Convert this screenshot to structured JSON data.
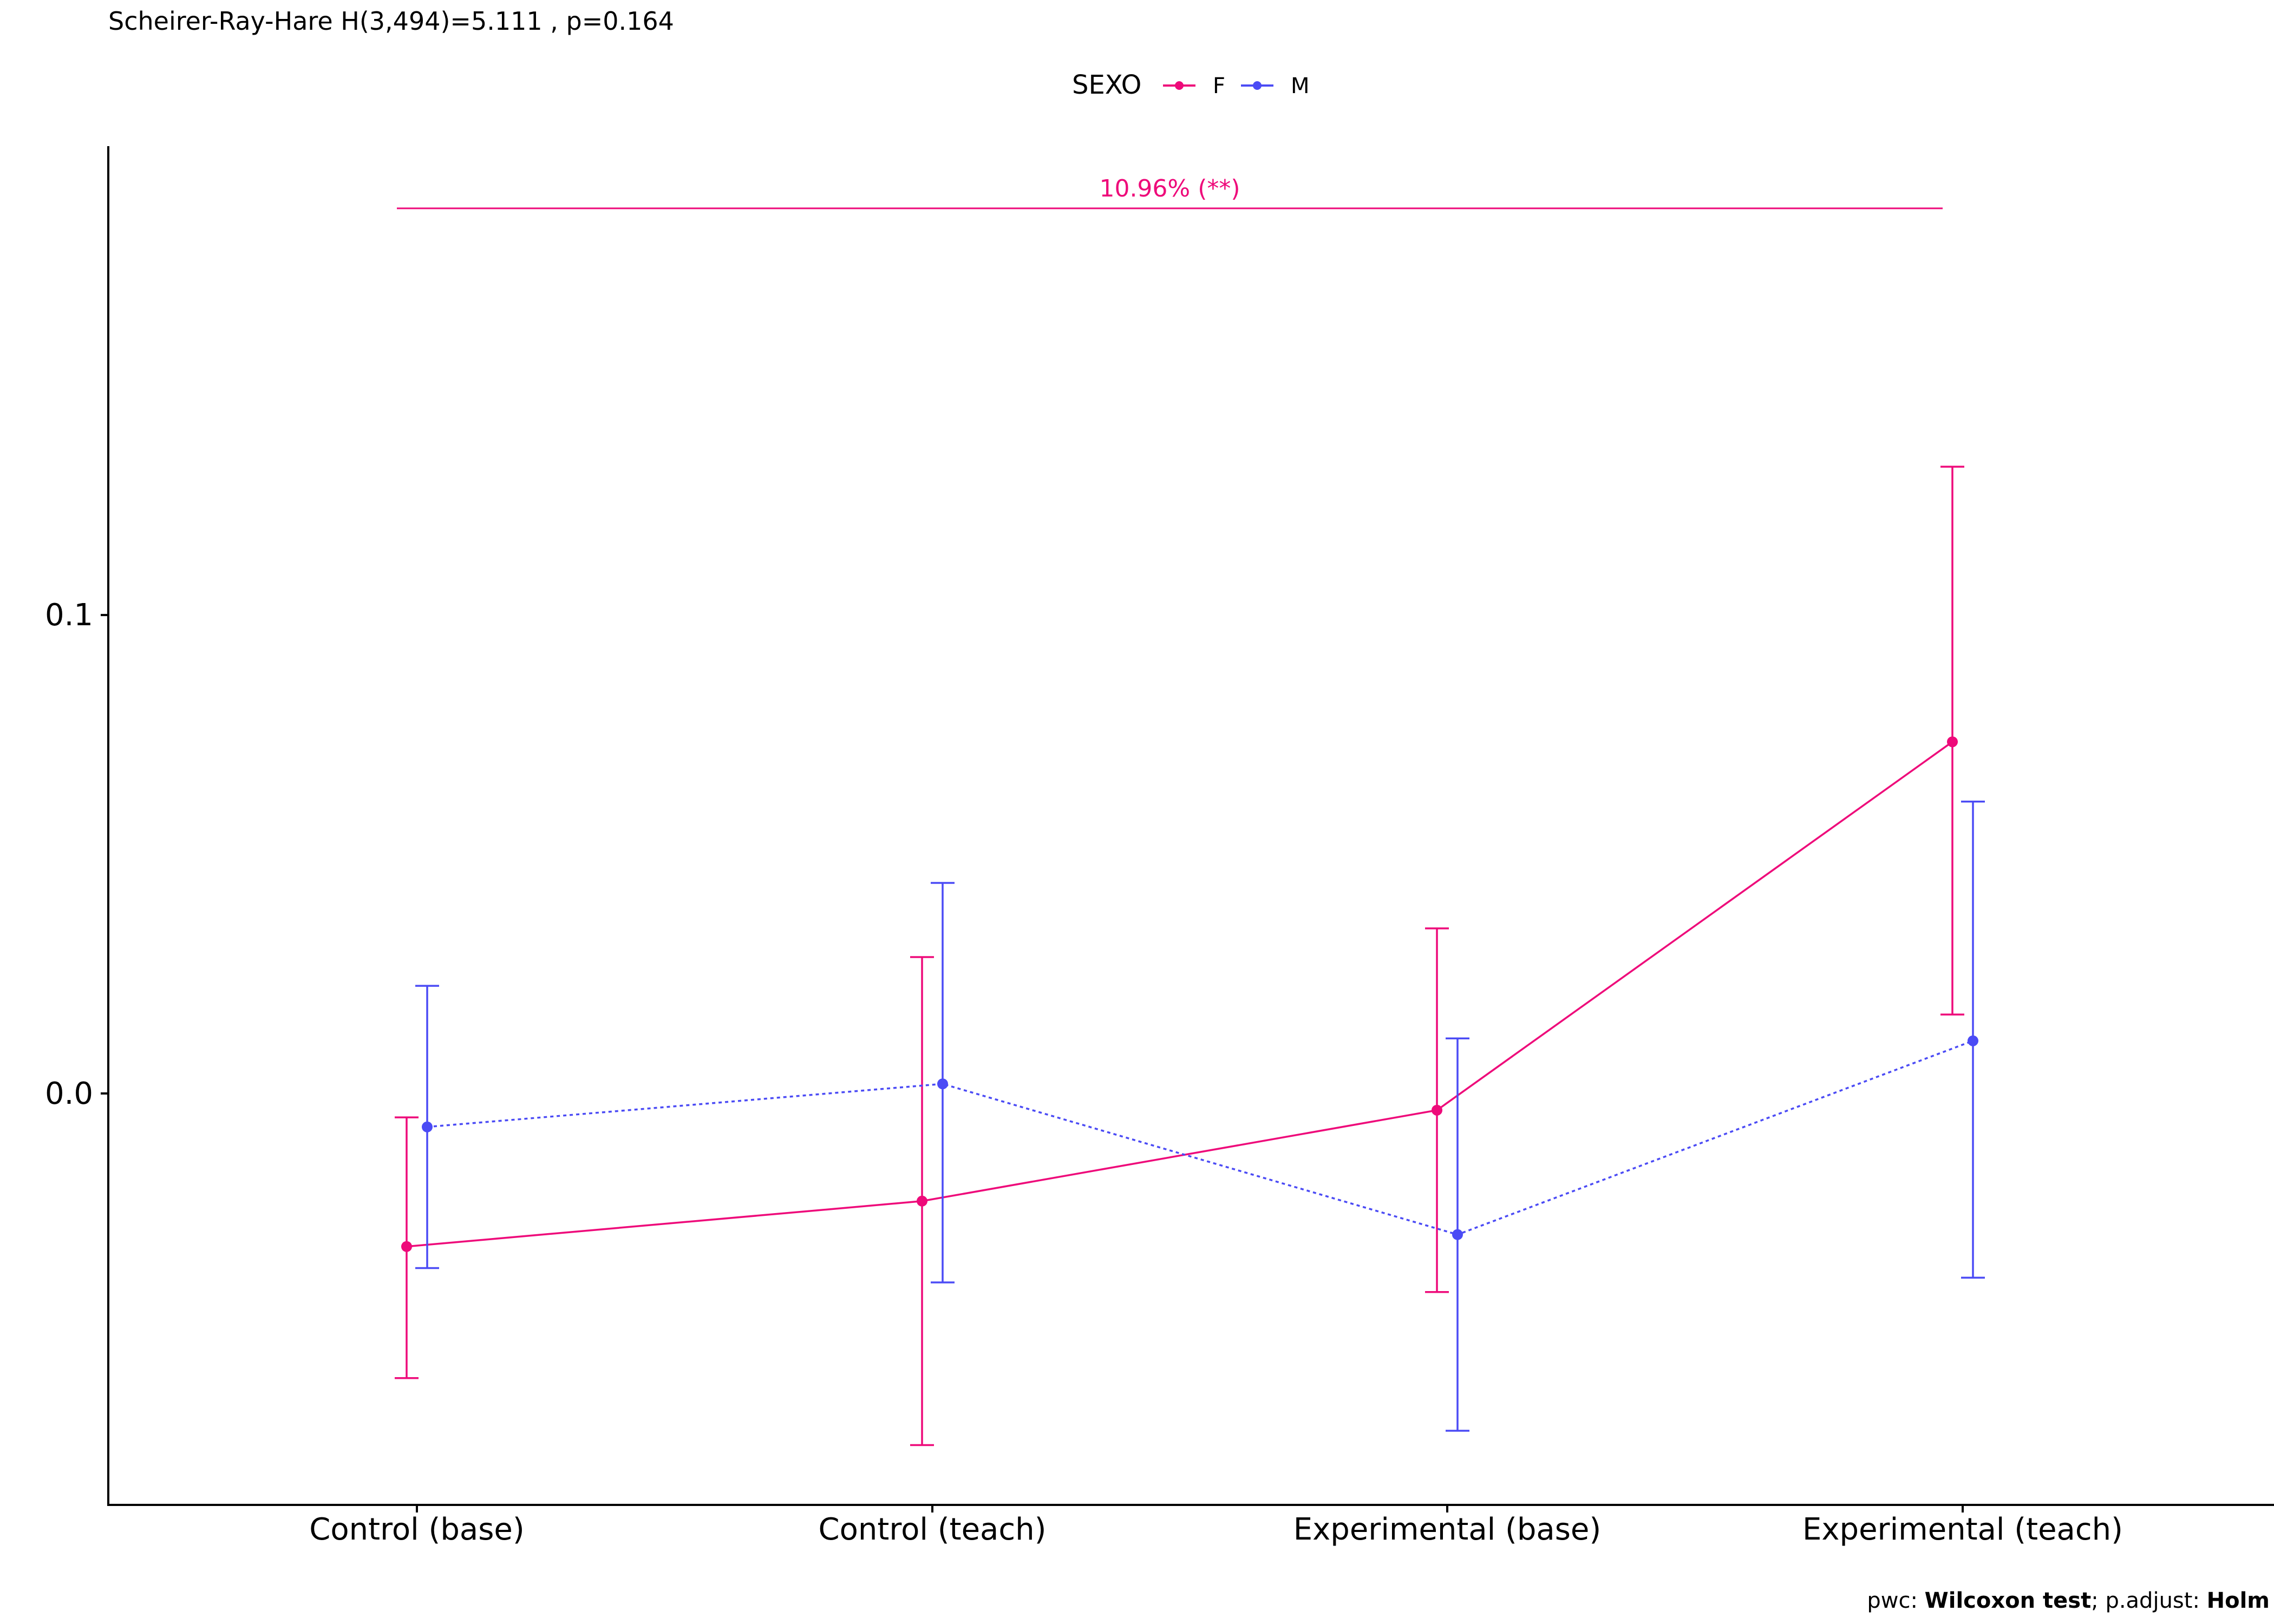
{
  "chart_data": {
    "type": "line",
    "title": "Scheirer-Ray-Hare H(3,494)=5.111 , p=0.164",
    "xlabel": "",
    "ylabel": "",
    "categories": [
      "Control (base)",
      "Control (teach)",
      "Experimental (base)",
      "Experimental (teach)"
    ],
    "yticks": [
      0.0,
      0.1
    ],
    "ytick_labels": [
      "0.0",
      "0.1"
    ],
    "ylim": [
      -0.086,
      0.198
    ],
    "legend": {
      "title": "SEXO",
      "position": "top",
      "entries": [
        "F",
        "M"
      ]
    },
    "series": [
      {
        "name": "F",
        "color": "#ee0a7a",
        "line_style": "solid",
        "values": [
          -0.032,
          -0.0225,
          -0.0035,
          0.0735
        ],
        "error_low": [
          -0.0595,
          -0.0735,
          -0.0415,
          0.0165
        ],
        "error_high": [
          -0.005,
          0.0285,
          0.0345,
          0.131
        ]
      },
      {
        "name": "M",
        "color": "#4b4bf5",
        "line_style": "dotted",
        "values": [
          -0.007,
          0.002,
          -0.0295,
          0.011
        ],
        "error_low": [
          -0.0365,
          -0.0395,
          -0.0705,
          -0.0385
        ],
        "error_high": [
          0.0225,
          0.044,
          0.0115,
          0.061
        ]
      }
    ],
    "annotation": {
      "text": "10.96% (**)",
      "color": "#ee0a7a",
      "from": "Control (base)",
      "to": "Experimental (teach)",
      "y": 0.185
    },
    "caption": {
      "prefix": "pwc: ",
      "test": "Wilcoxon test",
      "middle": "; p.adjust: ",
      "method": "Holm"
    },
    "grid": false
  }
}
